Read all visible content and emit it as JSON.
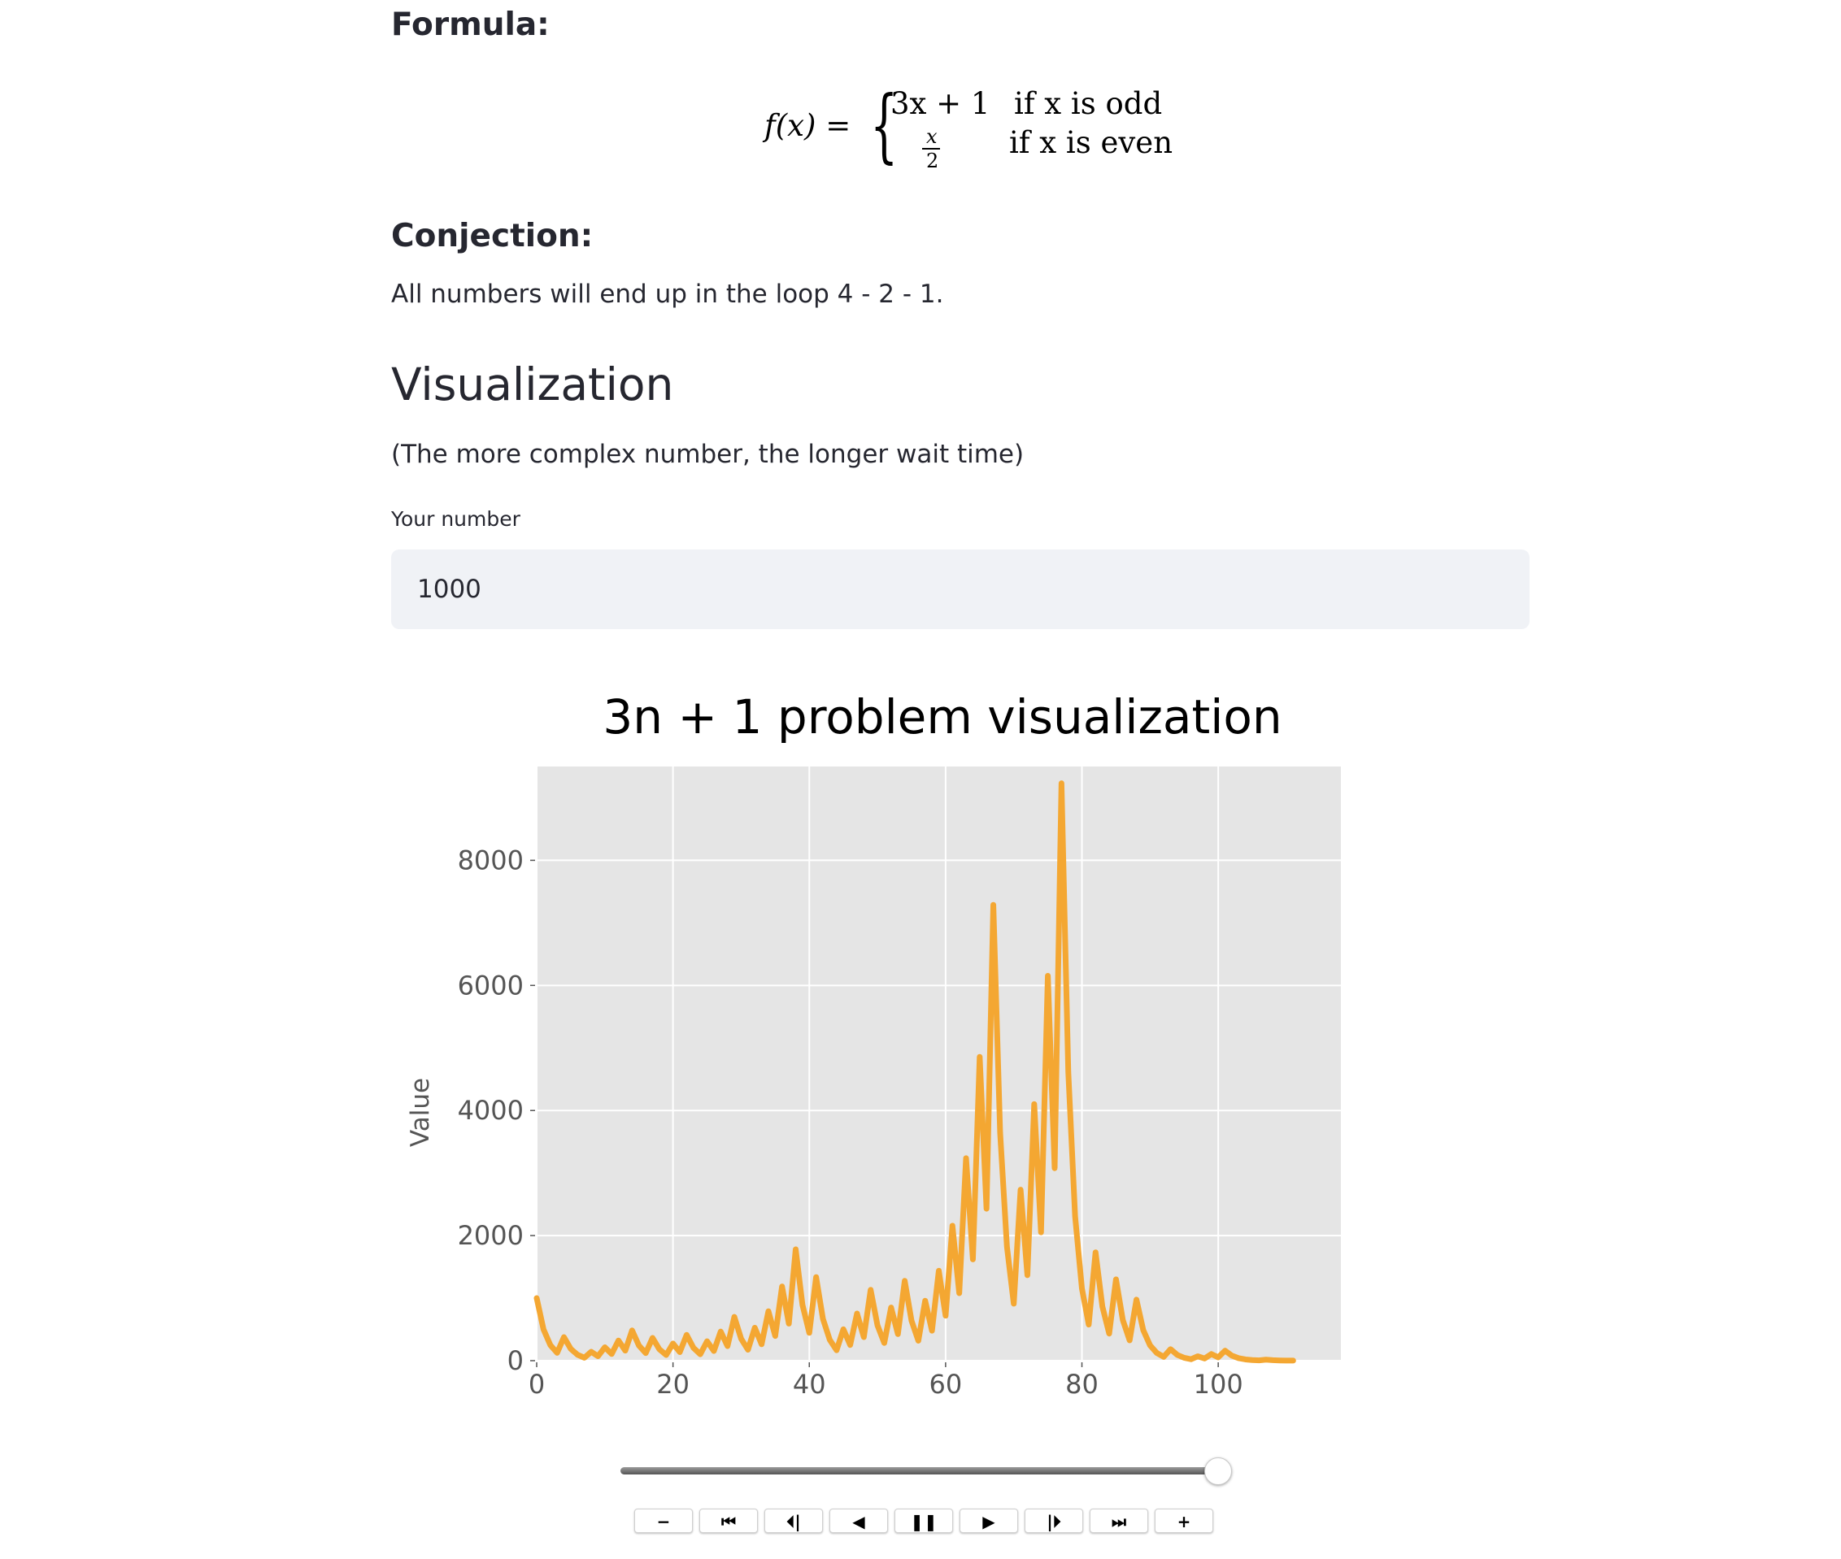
{
  "formula_section": {
    "heading": "Formula:",
    "fx": "f(x) =",
    "case1_expr": "3x + 1",
    "case1_cond": "if x is odd",
    "case2_num": "x",
    "case2_den": "2",
    "case2_cond": "if x is even"
  },
  "conjecture_section": {
    "heading": "Conjection:",
    "text": "All numbers will end up in the loop 4 - 2 - 1."
  },
  "visualization": {
    "heading": "Visualization",
    "note": "(The more complex number, the longer wait time)",
    "input_label": "Your number",
    "input_value": "1000"
  },
  "chart_data": {
    "type": "line",
    "title": "3n + 1 problem visualization",
    "xlabel": "",
    "ylabel": "Value",
    "xlim": [
      0,
      118
    ],
    "ylim": [
      0,
      9500
    ],
    "xticks": [
      0,
      20,
      40,
      60,
      80,
      100
    ],
    "yticks": [
      0,
      2000,
      4000,
      6000,
      8000
    ],
    "grid": true,
    "line_color": "#f4a732",
    "background": "#e5e5e5",
    "series": [
      {
        "values": [
          1000,
          500,
          250,
          125,
          376,
          188,
          94,
          47,
          142,
          71,
          214,
          107,
          322,
          161,
          484,
          242,
          121,
          364,
          182,
          91,
          274,
          137,
          412,
          206,
          103,
          310,
          155,
          466,
          233,
          700,
          350,
          175,
          526,
          263,
          790,
          395,
          1186,
          593,
          1780,
          890,
          445,
          1336,
          668,
          334,
          167,
          502,
          251,
          754,
          377,
          1132,
          566,
          283,
          850,
          425,
          1276,
          638,
          319,
          958,
          479,
          1438,
          719,
          2158,
          1079,
          3238,
          1619,
          4858,
          2429,
          7288,
          3644,
          1822,
          911,
          2734,
          1367,
          4102,
          2051,
          6154,
          3077,
          9232,
          4616,
          2308,
          1154,
          577,
          1732,
          866,
          433,
          1300,
          650,
          325,
          976,
          488,
          244,
          122,
          61,
          184,
          92,
          46,
          23,
          70,
          35,
          106,
          53,
          160,
          80,
          40,
          20,
          10,
          5,
          16,
          8,
          4,
          2,
          1
        ]
      }
    ]
  },
  "player": {
    "slider_value": 1.0,
    "buttons": [
      {
        "name": "decrease-speed-button",
        "glyph": "−"
      },
      {
        "name": "first-frame-button",
        "glyph": "⏮"
      },
      {
        "name": "prev-frame-button",
        "glyph": "⏴|"
      },
      {
        "name": "play-reverse-button",
        "glyph": "◀"
      },
      {
        "name": "pause-button",
        "glyph": "❚❚"
      },
      {
        "name": "play-button",
        "glyph": "▶"
      },
      {
        "name": "next-frame-button",
        "glyph": "|⏵"
      },
      {
        "name": "last-frame-button",
        "glyph": "⏭"
      },
      {
        "name": "increase-speed-button",
        "glyph": "+"
      }
    ]
  }
}
